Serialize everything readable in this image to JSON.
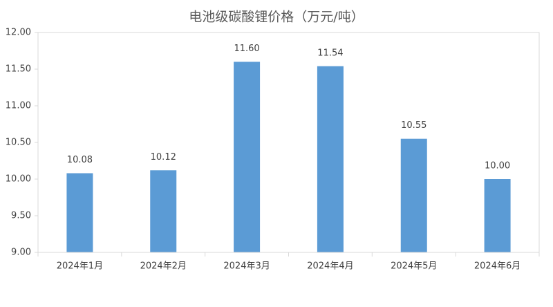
{
  "chart_data": {
    "type": "bar",
    "title": "电池级碳酸锂价格（万元/吨）",
    "categories": [
      "2024年1月",
      "2024年2月",
      "2024年3月",
      "2024年4月",
      "2024年5月",
      "2024年6月"
    ],
    "values": [
      10.08,
      10.12,
      11.6,
      11.54,
      10.55,
      10.0
    ],
    "value_labels": [
      "10.08",
      "10.12",
      "11.60",
      "11.54",
      "10.55",
      "10.00"
    ],
    "color": "#5b9bd5",
    "ylim": [
      9,
      12
    ],
    "yticks": [
      {
        "value": 9,
        "label": "9.00"
      },
      {
        "value": 9.5,
        "label": "9.50"
      },
      {
        "value": 10,
        "label": "10.00"
      },
      {
        "value": 10.5,
        "label": "10.50"
      },
      {
        "value": 11,
        "label": "11.00"
      },
      {
        "value": 11.5,
        "label": "11.50"
      },
      {
        "value": 12,
        "label": "12.00"
      }
    ],
    "grid": false
  }
}
